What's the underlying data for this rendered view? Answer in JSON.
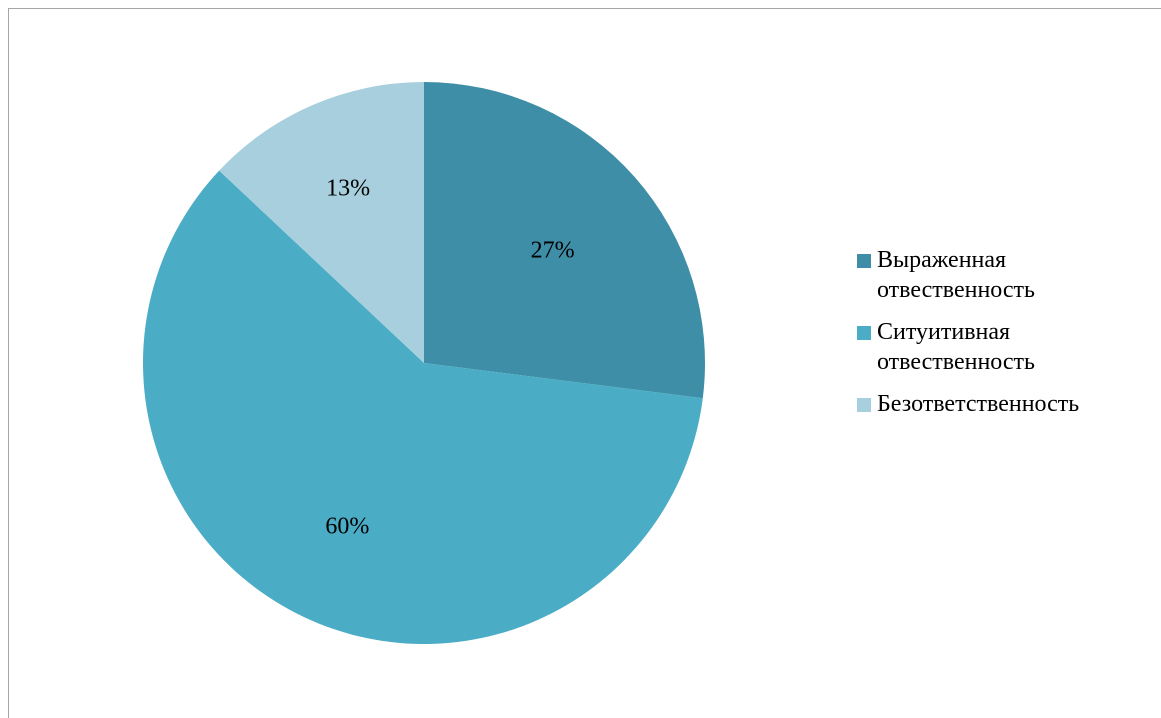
{
  "chart_data": {
    "type": "pie",
    "title": "",
    "slices": [
      {
        "label": "Выраженная отвественность",
        "value": 27,
        "display": "27%",
        "color": "#3e8ea7"
      },
      {
        "label": "Ситуитивная отвественность",
        "value": 60,
        "display": "60%",
        "color": "#4aacc5"
      },
      {
        "label": "Безответственность",
        "value": 13,
        "display": "13%",
        "color": "#a7cfdd"
      }
    ],
    "start_angle": "top",
    "direction": "clockwise",
    "legend_position": "right"
  }
}
